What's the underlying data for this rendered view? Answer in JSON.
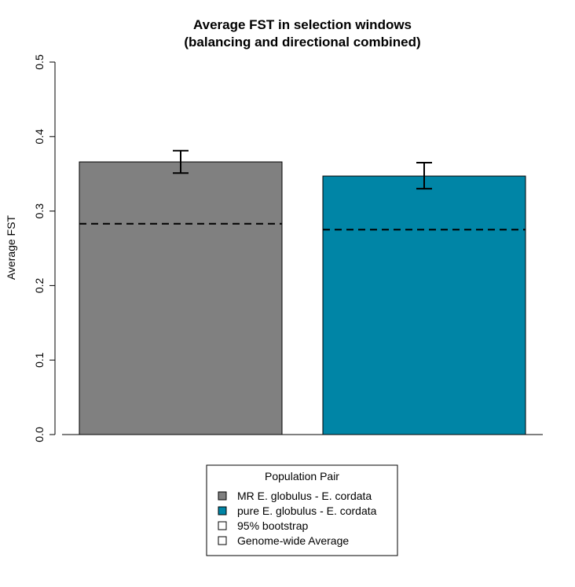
{
  "chart_data": {
    "type": "bar",
    "title_line1": "Average FST in selection windows",
    "title_line2": "(balancing and directional combined)",
    "ylabel": "Average FST",
    "xlabel": "",
    "ylim": [
      0,
      0.5
    ],
    "yticks": [
      "0.0",
      "0.1",
      "0.2",
      "0.3",
      "0.4",
      "0.5"
    ],
    "categories": [
      "MR E. globulus - E. cordata",
      "pure E. globulus - E. cordata"
    ],
    "values": [
      0.366,
      0.347
    ],
    "error_low": [
      0.351,
      0.33
    ],
    "error_high": [
      0.381,
      0.365
    ],
    "genome_wide_average": [
      0.283,
      0.275
    ],
    "colors": [
      "#808080",
      "#0085A6"
    ],
    "legend": {
      "title": "Population Pair",
      "placement": "bottom-center",
      "entries": [
        {
          "label": "MR E. globulus - E. cordata",
          "color": "#808080"
        },
        {
          "label": "pure E. globulus - E. cordata",
          "color": "#0085A6"
        },
        {
          "label": "95% bootstrap",
          "color": "#ffffff"
        },
        {
          "label": "Genome-wide Average",
          "color": "#ffffff"
        }
      ]
    },
    "grid": false
  }
}
